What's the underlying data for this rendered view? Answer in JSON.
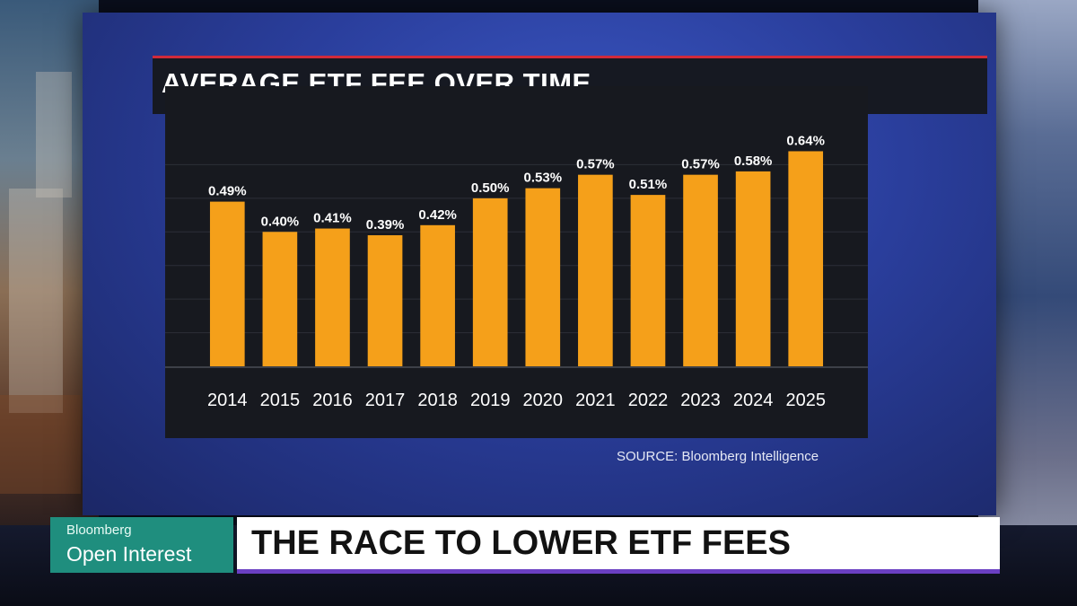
{
  "lower_third": {
    "brand": "Bloomberg",
    "show": "Open Interest",
    "headline": "THE RACE TO LOWER ETF FEES"
  },
  "chart_source": "SOURCE: Bloomberg Intelligence",
  "colors": {
    "bar": "#f5a01a",
    "title_rule": "#d12a3a",
    "brand_box": "#1f8e7e",
    "headline_rule": "#6a3fc2"
  },
  "chart_data": {
    "type": "bar",
    "title": "AVERAGE ETF FEE OVER TIME",
    "categories": [
      "2014",
      "2015",
      "2016",
      "2017",
      "2018",
      "2019",
      "2020",
      "2021",
      "2022",
      "2023",
      "2024",
      "2025"
    ],
    "values": [
      0.49,
      0.4,
      0.41,
      0.39,
      0.42,
      0.5,
      0.53,
      0.57,
      0.51,
      0.57,
      0.58,
      0.64
    ],
    "data_labels": [
      "0.49%",
      "0.40%",
      "0.41%",
      "0.39%",
      "0.42%",
      "0.50%",
      "0.53%",
      "0.57%",
      "0.51%",
      "0.57%",
      "0.58%",
      "0.64%"
    ],
    "ylim": [
      0,
      0.7
    ],
    "grid": true,
    "xlabel": "",
    "ylabel": ""
  }
}
